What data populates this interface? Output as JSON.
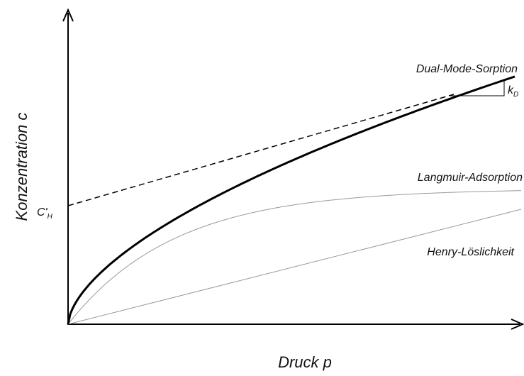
{
  "axes": {
    "y_label": "Konzentration c",
    "x_label": "Druck p"
  },
  "curves": [
    {
      "label": "Dual-Mode-Sorption"
    },
    {
      "label": "Langmuir-Adsorption"
    },
    {
      "label": "Henry-Löslichkeit"
    }
  ],
  "annotations": {
    "intercept": {
      "main": "C'",
      "sub": "H"
    },
    "slope": {
      "main": "k",
      "sub": "D"
    }
  }
}
